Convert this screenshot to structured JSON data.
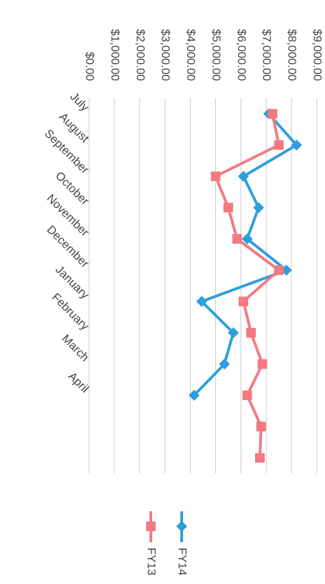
{
  "chart_data": {
    "type": "line",
    "categories": [
      "July",
      "August",
      "September",
      "October",
      "November",
      "December",
      "January",
      "February",
      "March",
      "April",
      null,
      null
    ],
    "series": [
      {
        "name": "FY14",
        "color": "#2e9fdc",
        "marker": "diamond",
        "values": [
          7100,
          8200,
          6100,
          6700,
          6250,
          7800,
          4450,
          5700,
          5350,
          4150,
          null,
          null
        ]
      },
      {
        "name": "FY13",
        "color": "#f27a80",
        "marker": "square",
        "values": [
          7250,
          7500,
          5000,
          5500,
          5850,
          7500,
          6100,
          6400,
          6850,
          6250,
          6800,
          6750
        ]
      }
    ],
    "ylim": [
      0,
      9000
    ],
    "yticks": [
      {
        "value": 0,
        "label": "$0.00"
      },
      {
        "value": 1000,
        "label": "$1,000.00"
      },
      {
        "value": 2000,
        "label": "$2,000.00"
      },
      {
        "value": 3000,
        "label": "$3,000.00"
      },
      {
        "value": 4000,
        "label": "$4,000.00"
      },
      {
        "value": 5000,
        "label": "$5,000.00"
      },
      {
        "value": 6000,
        "label": "$6,000.00"
      },
      {
        "value": 7000,
        "label": "$7,000.00"
      },
      {
        "value": 8000,
        "label": "$8,000.00"
      },
      {
        "value": 9000,
        "label": "$9,000.00"
      }
    ],
    "grid": true
  }
}
